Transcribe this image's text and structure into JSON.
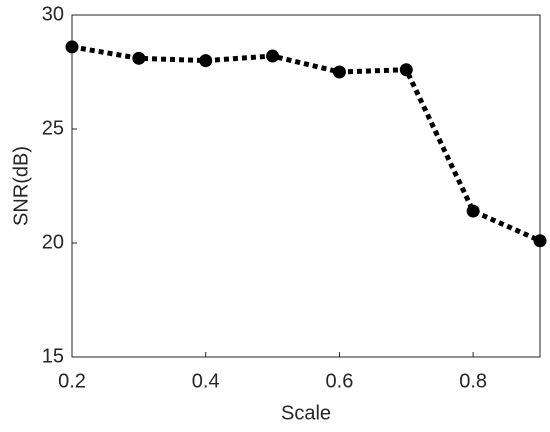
{
  "chart_data": {
    "type": "line",
    "x": [
      0.2,
      0.3,
      0.4,
      0.5,
      0.6,
      0.7,
      0.8,
      0.9
    ],
    "series": [
      {
        "color": "#000000",
        "values": [
          28.6,
          28.1,
          28.0,
          28.2,
          27.5,
          27.6,
          21.4,
          20.1
        ]
      }
    ],
    "xlabel": "Scale",
    "ylabel": "SNR(dB)",
    "xlim": [
      0.2,
      0.9
    ],
    "xticks": [
      0.2,
      0.4,
      0.6,
      0.8
    ],
    "ylim": [
      15,
      30
    ],
    "yticks": [
      15,
      20,
      25,
      30
    ],
    "grid": false
  }
}
